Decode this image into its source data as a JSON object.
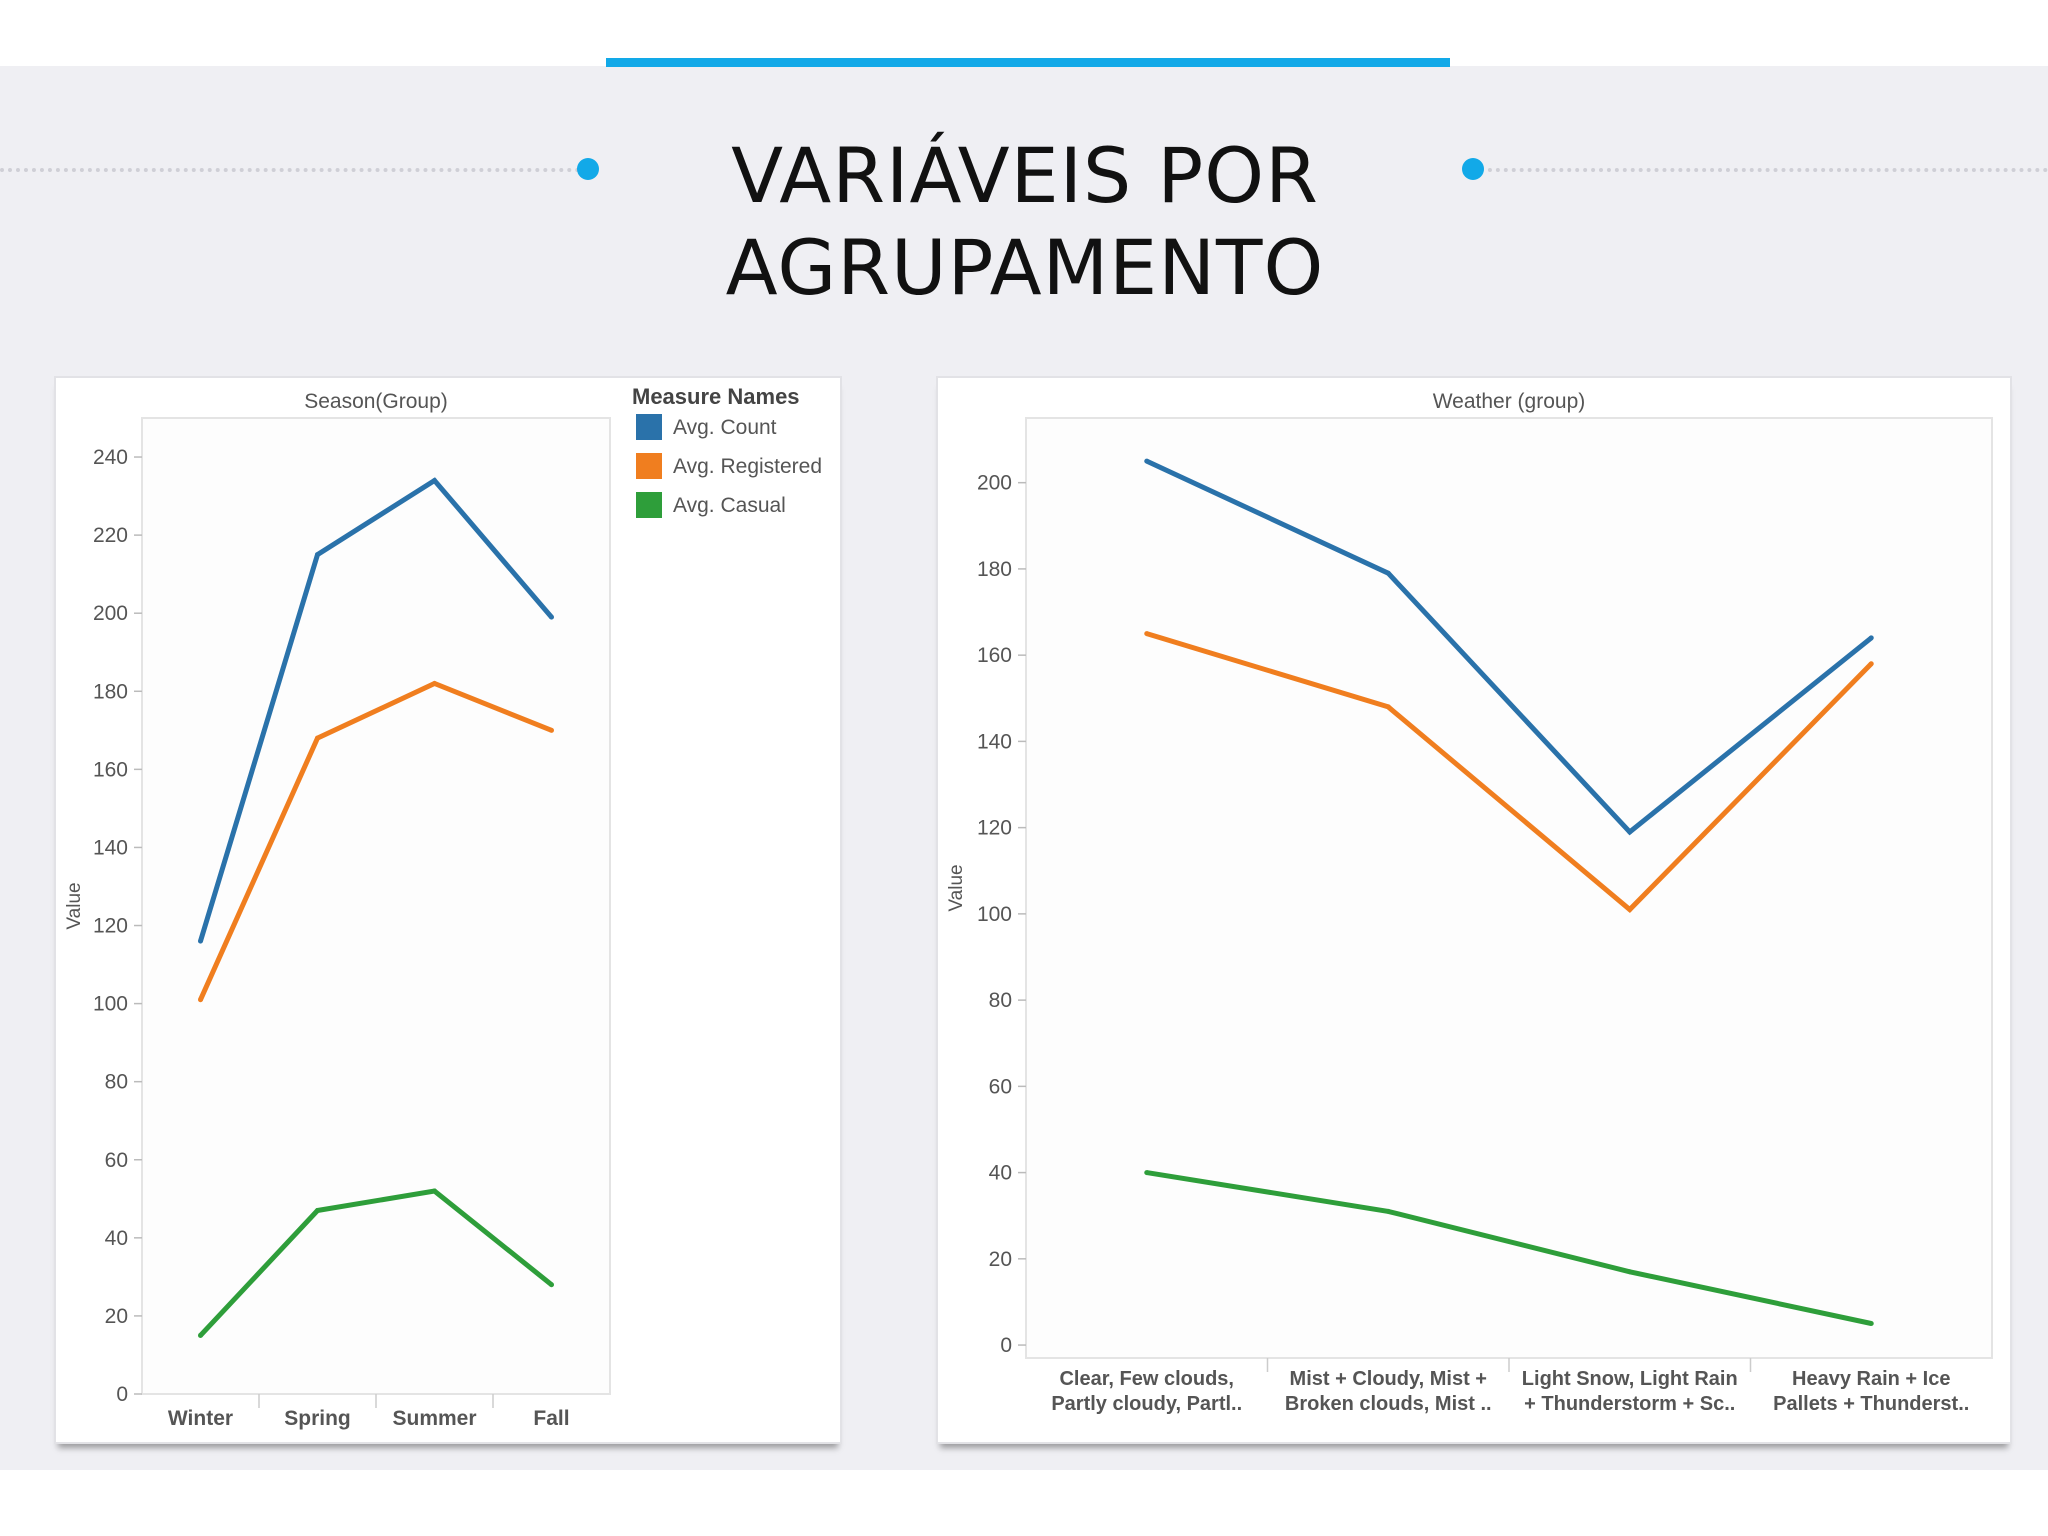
{
  "slide": {
    "title_line1": "VARIÁVEIS POR",
    "title_line2": "AGRUPAMENTO",
    "accent_color": "#12a9e8"
  },
  "legend": {
    "title": "Measure Names",
    "items": [
      {
        "label": "Avg. Count",
        "color": "#2a72aa"
      },
      {
        "label": "Avg. Registered",
        "color": "#f07e1f"
      },
      {
        "label": "Avg. Casual",
        "color": "#2e9e3a"
      }
    ]
  },
  "chart_data": [
    {
      "type": "line",
      "title": "Season(Group)",
      "ylabel": "Value",
      "ylim": [
        0,
        250
      ],
      "yticks": [
        0,
        20,
        40,
        60,
        80,
        100,
        120,
        140,
        160,
        180,
        200,
        220,
        240
      ],
      "categories": [
        [
          "Winter"
        ],
        [
          "Spring"
        ],
        [
          "Summer"
        ],
        [
          "Fall"
        ]
      ],
      "series": [
        {
          "name": "Avg. Count",
          "color": "#2a72aa",
          "values": [
            116,
            215,
            234,
            199
          ]
        },
        {
          "name": "Avg. Registered",
          "color": "#f07e1f",
          "values": [
            101,
            168,
            182,
            170
          ]
        },
        {
          "name": "Avg. Casual",
          "color": "#2e9e3a",
          "values": [
            15,
            47,
            52,
            28
          ]
        }
      ],
      "legend_position": "right"
    },
    {
      "type": "line",
      "title": "Weather (group)",
      "ylabel": "Value",
      "ylim": [
        -3,
        215
      ],
      "yticks": [
        0,
        20,
        40,
        60,
        80,
        100,
        120,
        140,
        160,
        180,
        200
      ],
      "categories": [
        [
          "Clear, Few clouds,",
          "Partly cloudy, Partl.."
        ],
        [
          "Mist + Cloudy, Mist +",
          "Broken clouds, Mist .."
        ],
        [
          "Light Snow, Light Rain",
          "+ Thunderstorm + Sc.."
        ],
        [
          "Heavy Rain + Ice",
          "Pallets + Thunderst.."
        ]
      ],
      "series": [
        {
          "name": "Avg. Count",
          "color": "#2a72aa",
          "values": [
            205,
            179,
            119,
            164
          ]
        },
        {
          "name": "Avg. Registered",
          "color": "#f07e1f",
          "values": [
            165,
            148,
            101,
            158
          ]
        },
        {
          "name": "Avg. Casual",
          "color": "#2e9e3a",
          "values": [
            40,
            31,
            17,
            5
          ]
        }
      ]
    }
  ]
}
